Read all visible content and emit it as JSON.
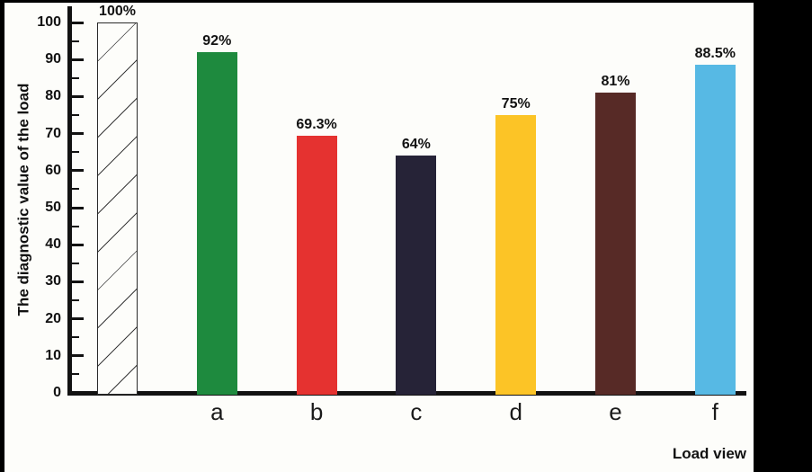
{
  "chart_data": {
    "type": "bar",
    "title": "",
    "xlabel": "Load view",
    "ylabel": "The diagnostic value of the load",
    "ylim": [
      0,
      100
    ],
    "y_major_ticks": [
      0,
      10,
      20,
      30,
      40,
      50,
      60,
      70,
      80,
      90,
      100
    ],
    "y_minor_step": 5,
    "grid": "off",
    "legend": "none",
    "categories": [
      "",
      "a",
      "b",
      "c",
      "d",
      "e",
      "f"
    ],
    "bars": [
      {
        "category": "",
        "value": 100,
        "label": "100%",
        "fill": "#FFFFFF",
        "hatch": true
      },
      {
        "category": "a",
        "value": 92,
        "label": "92%",
        "fill": "#1E8A3E",
        "hatch": false
      },
      {
        "category": "b",
        "value": 69.3,
        "label": "69.3%",
        "fill": "#E53230",
        "hatch": false
      },
      {
        "category": "c",
        "value": 64,
        "label": "64%",
        "fill": "#262337",
        "hatch": false
      },
      {
        "category": "d",
        "value": 75,
        "label": "75%",
        "fill": "#FCC426",
        "hatch": false
      },
      {
        "category": "e",
        "value": 81,
        "label": "81%",
        "fill": "#572A26",
        "hatch": false
      },
      {
        "category": "f",
        "value": 88.5,
        "label": "88.5%",
        "fill": "#57B9E4",
        "hatch": false
      }
    ],
    "colors": {
      "axis": "#121212",
      "text": "#121212",
      "chart_background": "#FDFDFA",
      "frame_background": "#000000",
      "hatch_line": "#3B3B3B"
    }
  }
}
